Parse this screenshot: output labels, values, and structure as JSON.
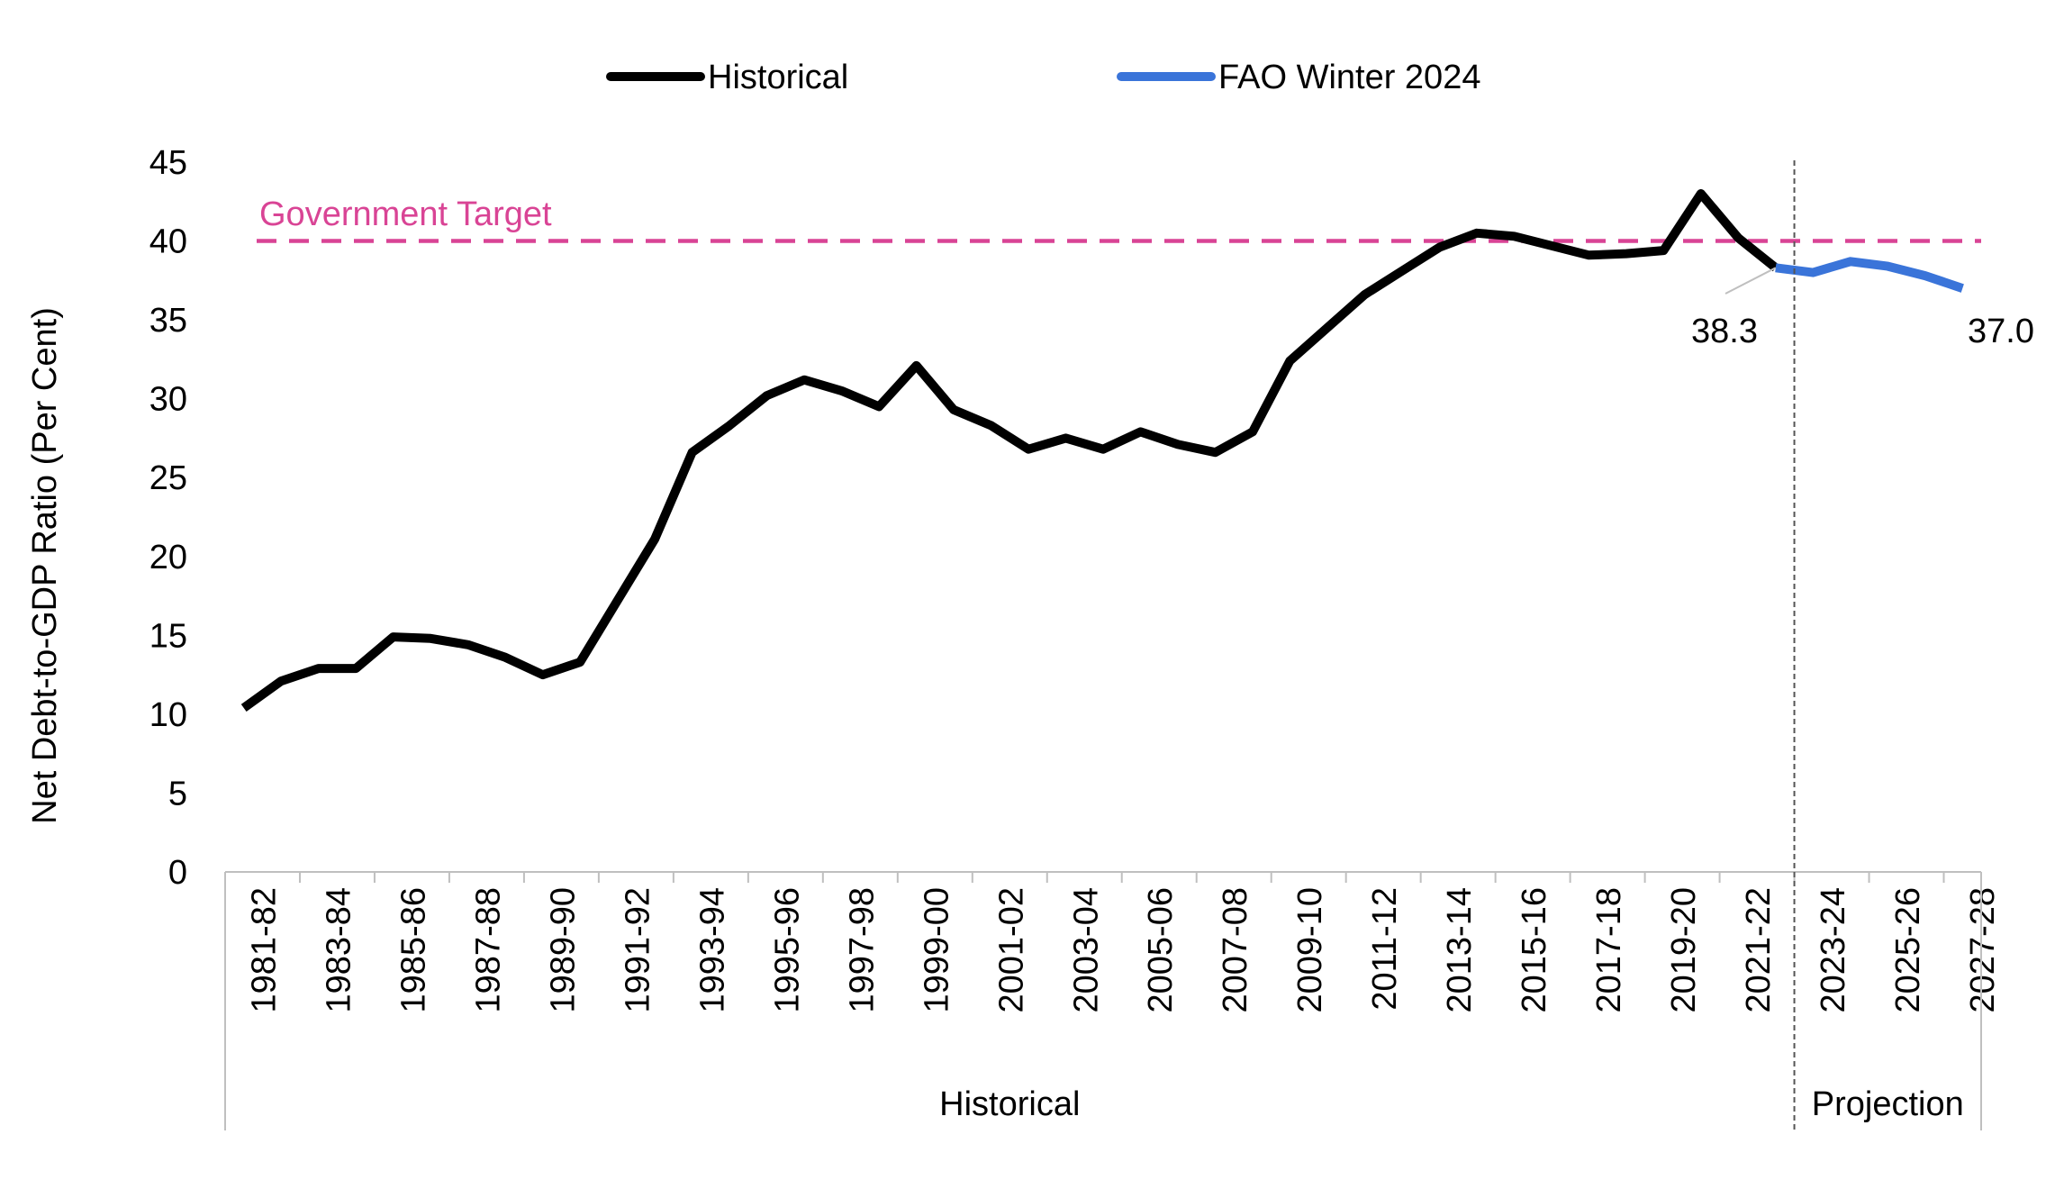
{
  "chart_data": {
    "type": "line",
    "title": "",
    "xlabel": "",
    "ylabel": "Net Debt-to-GDP Ratio (Per Cent)",
    "ylim": [
      0,
      45
    ],
    "yticks": [
      0,
      5,
      10,
      15,
      20,
      25,
      30,
      35,
      40,
      45
    ],
    "categories": [
      "1981-82",
      "1982-83",
      "1983-84",
      "1984-85",
      "1985-86",
      "1986-87",
      "1987-88",
      "1988-89",
      "1989-90",
      "1990-91",
      "1991-92",
      "1992-93",
      "1993-94",
      "1994-95",
      "1995-96",
      "1996-97",
      "1997-98",
      "1998-99",
      "1999-00",
      "2000-01",
      "2001-02",
      "2002-03",
      "2003-04",
      "2004-05",
      "2005-06",
      "2006-07",
      "2007-08",
      "2008-09",
      "2009-10",
      "2010-11",
      "2011-12",
      "2012-13",
      "2013-14",
      "2014-15",
      "2015-16",
      "2016-17",
      "2017-18",
      "2018-19",
      "2019-20",
      "2020-21",
      "2021-22",
      "2022-23",
      "2023-24",
      "2024-25",
      "2025-26",
      "2026-27",
      "2027-28"
    ],
    "tick_labels": [
      "1981-82",
      "1983-84",
      "1985-86",
      "1987-88",
      "1989-90",
      "1991-92",
      "1993-94",
      "1995-96",
      "1997-98",
      "1999-00",
      "2001-02",
      "2003-04",
      "2005-06",
      "2007-08",
      "2009-10",
      "2011-12",
      "2013-14",
      "2015-16",
      "2017-18",
      "2019-20",
      "2021-22",
      "2023-24",
      "2025-26",
      "2027-28"
    ],
    "groups": [
      {
        "label": "Historical",
        "from": "1981-82",
        "to": "2022-23"
      },
      {
        "label": "Projection",
        "from": "2023-24",
        "to": "2027-28"
      }
    ],
    "series": [
      {
        "name": "Historical",
        "color": "#000000",
        "values": [
          10.4,
          12.1,
          12.9,
          12.9,
          14.9,
          14.8,
          14.4,
          13.6,
          12.5,
          13.3,
          17.2,
          21.1,
          26.6,
          28.3,
          30.2,
          31.2,
          30.5,
          29.5,
          32.1,
          29.3,
          28.3,
          26.8,
          27.5,
          26.8,
          27.9,
          27.1,
          26.6,
          27.9,
          32.4,
          34.5,
          36.6,
          38.1,
          39.6,
          40.5,
          40.3,
          39.7,
          39.1,
          39.2,
          39.4,
          43.0,
          40.2,
          38.3,
          null,
          null,
          null,
          null,
          null
        ]
      },
      {
        "name": "FAO Winter 2024",
        "color": "#3a74d9",
        "values": [
          null,
          null,
          null,
          null,
          null,
          null,
          null,
          null,
          null,
          null,
          null,
          null,
          null,
          null,
          null,
          null,
          null,
          null,
          null,
          null,
          null,
          null,
          null,
          null,
          null,
          null,
          null,
          null,
          null,
          null,
          null,
          null,
          null,
          null,
          null,
          null,
          null,
          null,
          null,
          null,
          null,
          38.3,
          38.0,
          38.7,
          38.4,
          37.8,
          37.0
        ]
      }
    ],
    "reference_line": {
      "label": "Government Target",
      "value": 40,
      "color": "#d94495"
    },
    "annotations": [
      {
        "text": "38.3",
        "category": "2022-23",
        "value": 38.3
      },
      {
        "text": "37.0",
        "category": "2027-28",
        "value": 37.0
      }
    ],
    "legend": {
      "position": "top"
    },
    "grid": false
  }
}
